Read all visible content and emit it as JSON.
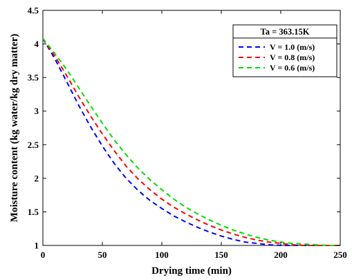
{
  "chart_data": {
    "type": "line",
    "xlabel": "Drying time (min)",
    "ylabel": "Moisture content (kg water/kg dry matter)",
    "xlim": [
      0,
      250
    ],
    "ylim": [
      1,
      4.5
    ],
    "xticks": [
      0,
      50,
      100,
      150,
      200,
      250
    ],
    "yticks": [
      1,
      1.5,
      2,
      2.5,
      3,
      3.5,
      4,
      4.5
    ],
    "grid": false,
    "legend_placement": "top-right",
    "legend_title": "Ta = 363.15K",
    "x": [
      0,
      10,
      20,
      30,
      40,
      50,
      60,
      70,
      80,
      90,
      100,
      110,
      120,
      130,
      140,
      150,
      160,
      170,
      180,
      190,
      200,
      210,
      220,
      230,
      240,
      250
    ],
    "series": [
      {
        "name": "V = 1.0 (m/s)",
        "color": "#0000ff",
        "values": [
          4.08,
          3.78,
          3.44,
          3.09,
          2.77,
          2.48,
          2.22,
          2.0,
          1.82,
          1.67,
          1.55,
          1.44,
          1.35,
          1.27,
          1.2,
          1.14,
          1.09,
          1.05,
          1.03,
          1.01,
          1.0,
          1.0,
          1.0,
          1.0,
          1.0,
          1.0
        ]
      },
      {
        "name": "V = 0.8 (m/s)",
        "color": "#ff0000",
        "values": [
          4.08,
          3.82,
          3.53,
          3.22,
          2.93,
          2.66,
          2.41,
          2.18,
          1.99,
          1.83,
          1.69,
          1.57,
          1.47,
          1.38,
          1.3,
          1.23,
          1.17,
          1.12,
          1.08,
          1.05,
          1.03,
          1.01,
          1.0,
          1.0,
          1.0,
          1.0
        ]
      },
      {
        "name": "V = 0.6 (m/s)",
        "color": "#00dd00",
        "values": [
          4.08,
          3.86,
          3.62,
          3.35,
          3.08,
          2.82,
          2.57,
          2.35,
          2.15,
          1.98,
          1.83,
          1.69,
          1.57,
          1.47,
          1.38,
          1.3,
          1.23,
          1.17,
          1.12,
          1.08,
          1.05,
          1.03,
          1.02,
          1.01,
          1.0,
          1.0
        ]
      }
    ]
  }
}
